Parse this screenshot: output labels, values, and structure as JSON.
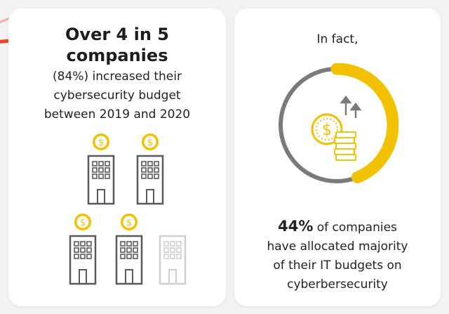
{
  "colors": {
    "accent_yellow": "#f2c200",
    "ring_gray": "#7a7a7a",
    "building_gray": "#5a5a5a",
    "building_faded": "#cfcfcf",
    "accent_red": "#e84a2a"
  },
  "left_card": {
    "headline_line1": "Over 4 in 5",
    "headline_line2": "companies",
    "sub_line1": "(84%) increased their",
    "sub_line2": "cybersecurity budget",
    "sub_line3": "between 2019 and 2020",
    "buildings": [
      {
        "icon": "building-with-coin-icon",
        "highlighted": true
      },
      {
        "icon": "building-with-coin-icon",
        "highlighted": true
      },
      {
        "icon": "building-with-coin-icon",
        "highlighted": true
      },
      {
        "icon": "building-with-coin-icon",
        "highlighted": true
      },
      {
        "icon": "building-icon",
        "highlighted": false
      }
    ],
    "coin_symbol": "$"
  },
  "right_card": {
    "intro": "In fact,",
    "stat_percent": "44%",
    "stat_line1_rest": " of companies",
    "stat_line2": "have allocated majority",
    "stat_line3": "of their IT budgets on",
    "stat_line4": "cyberbersecurity",
    "donut_fill_fraction": 0.44,
    "coin_symbol": "$",
    "center_icon": "dollar-coin-with-rising-arrows-icon"
  }
}
